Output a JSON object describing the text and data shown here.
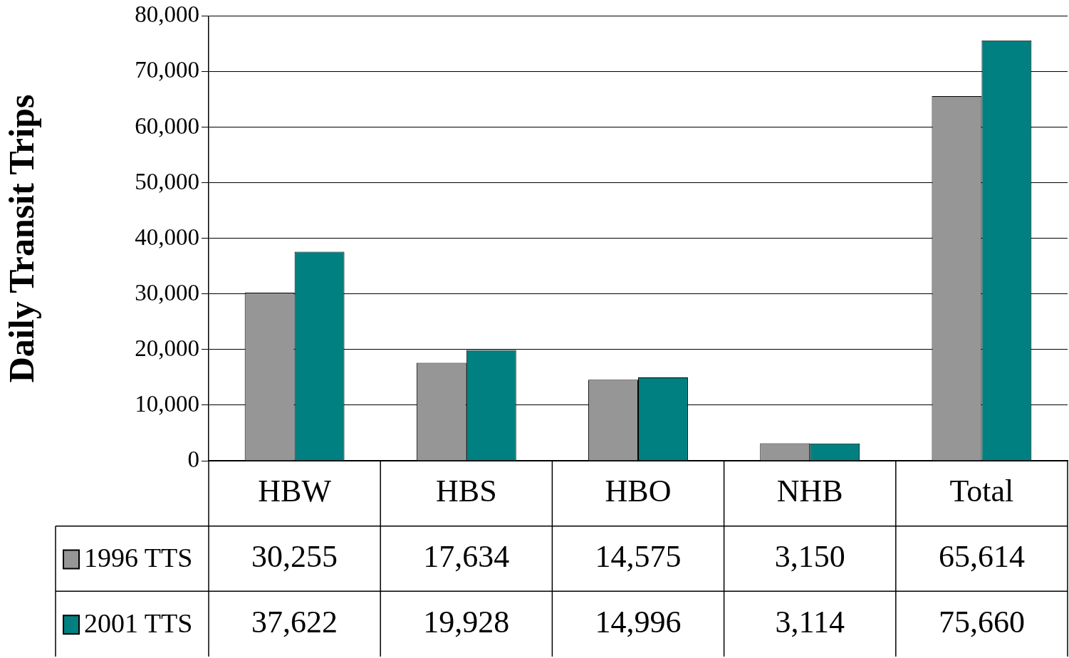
{
  "chart_data": {
    "type": "bar",
    "ylabel": "Daily Transit Trips",
    "categories": [
      "HBW",
      "HBS",
      "HBO",
      "NHB",
      "Total"
    ],
    "series": [
      {
        "name": "1996 TTS",
        "color": "#969696",
        "values": [
          30255,
          17634,
          14575,
          3150,
          65614
        ],
        "value_labels": [
          "30,255",
          "17,634",
          "14,575",
          "3,150",
          "65,614"
        ]
      },
      {
        "name": "2001 TTS",
        "color": "#008080",
        "values": [
          37622,
          19928,
          14996,
          3114,
          75660
        ],
        "value_labels": [
          "37,622",
          "19,928",
          "14,996",
          "3,114",
          "75,660"
        ]
      }
    ],
    "ylim": [
      0,
      80000
    ],
    "yticks": [
      0,
      {
        "value": 10000,
        "label": "10,000"
      },
      {
        "value": 20000,
        "label": "20,000"
      },
      {
        "value": 30000,
        "label": "30,000"
      },
      {
        "value": 40000,
        "label": "40,000"
      },
      {
        "value": 50000,
        "label": "50,000"
      },
      {
        "value": 60000,
        "label": "60,000"
      },
      {
        "value": 70000,
        "label": "70,000"
      },
      {
        "value": 80000,
        "label": "80,000"
      }
    ],
    "grid": "y",
    "legend": "bottom left"
  }
}
